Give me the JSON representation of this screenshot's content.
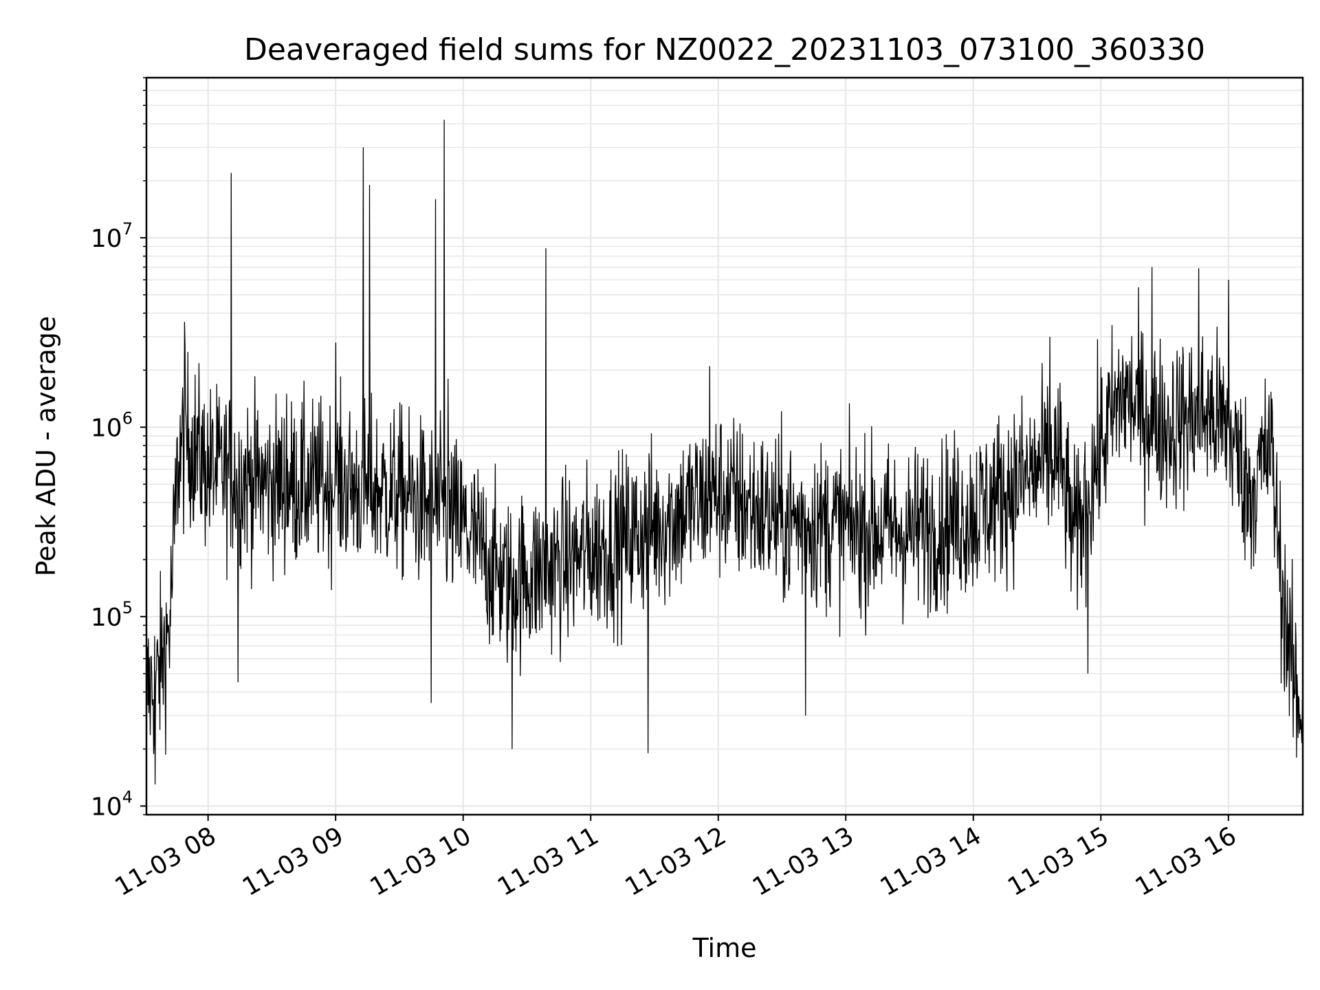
{
  "chart_data": {
    "type": "line",
    "title": "Deaveraged field sums for NZ0022_20231103_073100_360330",
    "xlabel": "Time",
    "ylabel": "Peak ADU - average",
    "yscale": "log",
    "x_start": "2023-11-03 07:31",
    "x_end": "2023-11-03 16:35",
    "xlim": [
      "2023-11-03 07:31",
      "2023-11-03 16:35"
    ],
    "ylim": [
      9000,
      70000000
    ],
    "x_ticks": [
      {
        "value": "2023-11-03 08:00",
        "label": "11-03 08"
      },
      {
        "value": "2023-11-03 09:00",
        "label": "11-03 09"
      },
      {
        "value": "2023-11-03 10:00",
        "label": "11-03 10"
      },
      {
        "value": "2023-11-03 11:00",
        "label": "11-03 11"
      },
      {
        "value": "2023-11-03 12:00",
        "label": "11-03 12"
      },
      {
        "value": "2023-11-03 13:00",
        "label": "11-03 13"
      },
      {
        "value": "2023-11-03 14:00",
        "label": "11-03 14"
      },
      {
        "value": "2023-11-03 15:00",
        "label": "11-03 15"
      },
      {
        "value": "2023-11-03 16:00",
        "label": "11-03 16"
      }
    ],
    "y_ticks": [
      {
        "value": 10000,
        "base": "10",
        "exp": "4"
      },
      {
        "value": 100000,
        "base": "10",
        "exp": "5"
      },
      {
        "value": 1000000,
        "base": "10",
        "exp": "6"
      },
      {
        "value": 10000000,
        "base": "10",
        "exp": "7"
      }
    ],
    "grid": true,
    "line_color": "#000000",
    "grid_color": "#e6e6e6",
    "series": [
      {
        "noise_envelope": [
          {
            "x": "2023-11-03 07:31",
            "y": 40000
          },
          {
            "x": "2023-11-03 07:36",
            "y": 45000
          },
          {
            "x": "2023-11-03 07:42",
            "y": 90000
          },
          {
            "x": "2023-11-03 07:46",
            "y": 700000
          },
          {
            "x": "2023-11-03 07:50",
            "y": 900000
          },
          {
            "x": "2023-11-03 08:00",
            "y": 600000
          },
          {
            "x": "2023-11-03 08:30",
            "y": 500000
          },
          {
            "x": "2023-11-03 09:00",
            "y": 500000
          },
          {
            "x": "2023-11-03 09:30",
            "y": 450000
          },
          {
            "x": "2023-11-03 10:00",
            "y": 300000
          },
          {
            "x": "2023-11-03 10:20",
            "y": 150000
          },
          {
            "x": "2023-11-03 10:40",
            "y": 180000
          },
          {
            "x": "2023-11-03 11:00",
            "y": 220000
          },
          {
            "x": "2023-11-03 11:30",
            "y": 300000
          },
          {
            "x": "2023-11-03 12:00",
            "y": 450000
          },
          {
            "x": "2023-11-03 12:30",
            "y": 320000
          },
          {
            "x": "2023-11-03 13:00",
            "y": 300000
          },
          {
            "x": "2023-11-03 13:30",
            "y": 280000
          },
          {
            "x": "2023-11-03 14:00",
            "y": 350000
          },
          {
            "x": "2023-11-03 14:20",
            "y": 500000
          },
          {
            "x": "2023-11-03 14:40",
            "y": 700000
          },
          {
            "x": "2023-11-03 14:48",
            "y": 250000
          },
          {
            "x": "2023-11-03 15:00",
            "y": 800000
          },
          {
            "x": "2023-11-03 15:10",
            "y": 1500000
          },
          {
            "x": "2023-11-03 15:30",
            "y": 1000000
          },
          {
            "x": "2023-11-03 15:50",
            "y": 1200000
          },
          {
            "x": "2023-11-03 16:00",
            "y": 1000000
          },
          {
            "x": "2023-11-03 16:10",
            "y": 450000
          },
          {
            "x": "2023-11-03 16:20",
            "y": 800000
          },
          {
            "x": "2023-11-03 16:25",
            "y": 150000
          },
          {
            "x": "2023-11-03 16:30",
            "y": 50000
          },
          {
            "x": "2023-11-03 16:35",
            "y": 30000
          }
        ],
        "spikes": [
          {
            "x": "2023-11-03 07:49",
            "y": 3600000
          },
          {
            "x": "2023-11-03 08:11",
            "y": 22000000
          },
          {
            "x": "2023-11-03 08:37",
            "y": 1500000
          },
          {
            "x": "2023-11-03 09:00",
            "y": 2800000
          },
          {
            "x": "2023-11-03 09:13",
            "y": 30000000
          },
          {
            "x": "2023-11-03 09:16",
            "y": 19000000
          },
          {
            "x": "2023-11-03 09:47",
            "y": 16000000
          },
          {
            "x": "2023-11-03 09:51",
            "y": 42000000
          },
          {
            "x": "2023-11-03 09:53",
            "y": 1800000
          },
          {
            "x": "2023-11-03 10:39",
            "y": 8800000
          },
          {
            "x": "2023-11-03 11:56",
            "y": 2100000
          },
          {
            "x": "2023-11-03 14:36",
            "y": 3000000
          },
          {
            "x": "2023-11-03 15:24",
            "y": 7000000
          },
          {
            "x": "2023-11-03 15:46",
            "y": 6900000
          },
          {
            "x": "2023-11-03 16:00",
            "y": 6000000
          }
        ],
        "dips": [
          {
            "x": "2023-11-03 07:35",
            "y": 13000
          },
          {
            "x": "2023-11-03 08:14",
            "y": 45000
          },
          {
            "x": "2023-11-03 09:45",
            "y": 35000
          },
          {
            "x": "2023-11-03 10:23",
            "y": 20000
          },
          {
            "x": "2023-11-03 11:27",
            "y": 19000
          },
          {
            "x": "2023-11-03 12:41",
            "y": 30000
          },
          {
            "x": "2023-11-03 14:54",
            "y": 50000
          },
          {
            "x": "2023-11-03 16:32",
            "y": 18000
          }
        ]
      }
    ]
  }
}
